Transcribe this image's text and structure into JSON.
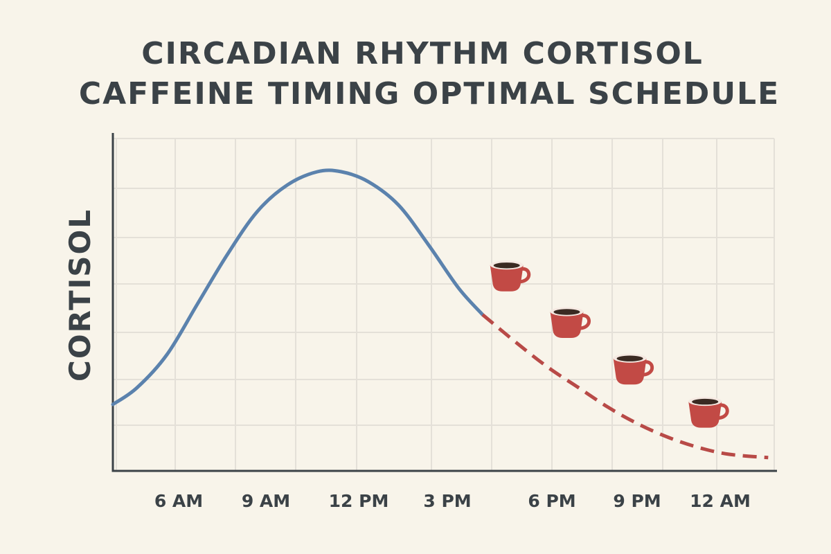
{
  "chart_data": {
    "type": "line",
    "title_lines": [
      "CIRCADIAN RHYTHM CORTISOL",
      "CAFFEINE TIMING OPTIMAL SCHEDULE"
    ],
    "ylabel": "CORTISOL",
    "xlabel": "",
    "x_ticks": [
      {
        "label": "6 AM",
        "hour": 6
      },
      {
        "label": "9 AM",
        "hour": 9
      },
      {
        "label": "12 PM",
        "hour": 12
      },
      {
        "label": "3 PM",
        "hour": 15
      },
      {
        "label": "6 PM",
        "hour": 18
      },
      {
        "label": "9 PM",
        "hour": 21
      },
      {
        "label": "12 AM",
        "hour": 24
      }
    ],
    "xlim": [
      4.5,
      26.5
    ],
    "ylim": [
      0,
      100
    ],
    "grid": true,
    "series": [
      {
        "style": "solid",
        "color": "#5b82ad",
        "points": [
          [
            4.5,
            20
          ],
          [
            5.3,
            25
          ],
          [
            6.3,
            35
          ],
          [
            7.3,
            50
          ],
          [
            8.3,
            65
          ],
          [
            9.3,
            78
          ],
          [
            10.3,
            86
          ],
          [
            11.3,
            90
          ],
          [
            12.1,
            90
          ],
          [
            13,
            87
          ],
          [
            14,
            80
          ],
          [
            15,
            68
          ],
          [
            16,
            55
          ],
          [
            16.8,
            47
          ]
        ]
      },
      {
        "style": "dashed",
        "color": "#b84a47",
        "points": [
          [
            16.8,
            47
          ],
          [
            18,
            38
          ],
          [
            19,
            31
          ],
          [
            20,
            25
          ],
          [
            21,
            19
          ],
          [
            22,
            14
          ],
          [
            23,
            10
          ],
          [
            24,
            7
          ],
          [
            25,
            5
          ],
          [
            26.3,
            4
          ]
        ]
      }
    ],
    "markers": [
      {
        "icon": "coffee-cup-icon",
        "hour": 17.6,
        "level": 59
      },
      {
        "icon": "coffee-cup-icon",
        "hour": 19.6,
        "level": 45
      },
      {
        "icon": "coffee-cup-icon",
        "hour": 21.7,
        "level": 31
      },
      {
        "icon": "coffee-cup-icon",
        "hour": 24.2,
        "level": 18
      }
    ],
    "colors": {
      "background": "#f8f4ea",
      "text": "#3b4247",
      "grid": "#e4e0d8",
      "cup": "#c24a45",
      "coffee": "#3a2a22"
    }
  }
}
